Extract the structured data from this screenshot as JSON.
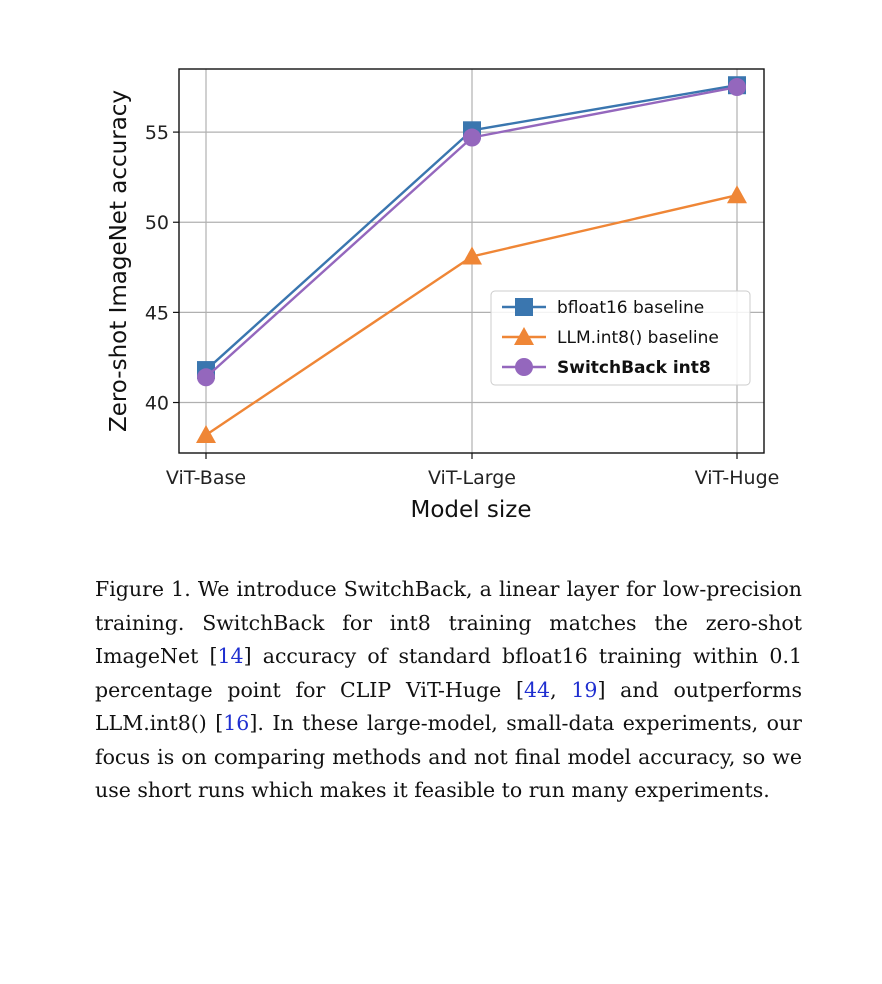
{
  "chart_data": {
    "type": "line",
    "categories": [
      "ViT-Base",
      "ViT-Large",
      "ViT-Huge"
    ],
    "xlabel": "Model size",
    "ylabel": "Zero-shot ImageNet accuracy",
    "ylim": [
      37.2,
      58.5
    ],
    "yticks": [
      40,
      45,
      50,
      55
    ],
    "grid": true,
    "legend": "center-right",
    "series": [
      {
        "name": "bfloat16 baseline",
        "values": [
          41.8,
          55.1,
          57.6
        ],
        "color": "#3a76af",
        "marker": "square",
        "bold": false
      },
      {
        "name": "LLM.int8() baseline",
        "values": [
          38.2,
          48.1,
          51.5
        ],
        "color": "#ef8636",
        "marker": "triangle",
        "bold": false
      },
      {
        "name": "SwitchBack int8",
        "values": [
          41.4,
          54.7,
          57.5
        ],
        "color": "#9467bd",
        "marker": "circle",
        "bold": true
      }
    ]
  },
  "caption": {
    "part1": "Figure 1.  We introduce SwitchBack, a linear layer for low-precision training.  SwitchBack for int8 training matches the zero-shot ImageNet [",
    "ref1": "14",
    "part2": "] accuracy of standard bfloat16 training within 0.1 percentage point for CLIP ViT-Huge [",
    "ref2": "44",
    "sep": ", ",
    "ref3": "19",
    "part3": "] and outperforms LLM.int8() [",
    "ref4": "16",
    "part4": "]. In these large-model, small-data experiments, our focus is on comparing methods and not final model accuracy, so we use short runs which makes it feasible to run many experiments."
  }
}
